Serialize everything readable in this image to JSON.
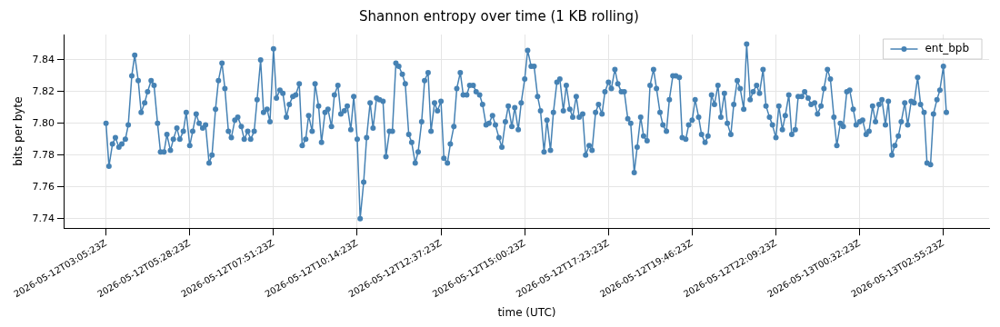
{
  "chart_data": {
    "type": "line",
    "title": "Shannon entropy over time (1 KB rolling)",
    "xlabel": "time (UTC)",
    "ylabel": "bits per byte",
    "x": [
      "2026-05-12T03:05",
      "2026-05-12T03:10",
      "2026-05-12T03:16",
      "2026-05-12T03:21",
      "2026-05-12T03:27",
      "2026-05-12T03:32",
      "2026-05-12T03:38",
      "2026-05-12T03:43",
      "2026-05-12T03:49",
      "2026-05-12T03:54",
      "2026-05-12T04:00",
      "2026-05-12T04:05",
      "2026-05-12T04:11",
      "2026-05-12T04:16",
      "2026-05-12T04:22",
      "2026-05-12T04:27",
      "2026-05-12T04:33",
      "2026-05-12T04:38",
      "2026-05-12T04:44",
      "2026-05-12T04:49",
      "2026-05-12T04:55",
      "2026-05-12T05:00",
      "2026-05-12T05:06",
      "2026-05-12T05:11",
      "2026-05-12T05:17",
      "2026-05-12T05:22",
      "2026-05-12T05:28",
      "2026-05-12T05:33",
      "2026-05-12T05:39",
      "2026-05-12T05:44",
      "2026-05-12T05:50",
      "2026-05-12T05:55",
      "2026-05-12T06:01",
      "2026-05-12T06:06",
      "2026-05-12T06:12",
      "2026-05-12T06:17",
      "2026-05-12T06:23",
      "2026-05-12T06:28",
      "2026-05-12T06:34",
      "2026-05-12T06:39",
      "2026-05-12T06:45",
      "2026-05-12T06:50",
      "2026-05-12T06:56",
      "2026-05-12T07:01",
      "2026-05-12T07:07",
      "2026-05-12T07:12",
      "2026-05-12T07:18",
      "2026-05-12T07:23",
      "2026-05-12T07:29",
      "2026-05-12T07:34",
      "2026-05-12T07:40",
      "2026-05-12T07:45",
      "2026-05-12T07:51",
      "2026-05-12T07:56",
      "2026-05-12T08:02",
      "2026-05-12T08:07",
      "2026-05-12T08:13",
      "2026-05-12T08:18",
      "2026-05-12T08:24",
      "2026-05-12T08:29",
      "2026-05-12T08:35",
      "2026-05-12T08:40",
      "2026-05-12T08:46",
      "2026-05-12T08:51",
      "2026-05-12T08:57",
      "2026-05-12T09:02",
      "2026-05-12T09:08",
      "2026-05-12T09:13",
      "2026-05-12T09:19",
      "2026-05-12T09:24",
      "2026-05-12T09:30",
      "2026-05-12T09:35",
      "2026-05-12T09:41",
      "2026-05-12T09:46",
      "2026-05-12T09:52",
      "2026-05-12T09:57",
      "2026-05-12T10:03",
      "2026-05-12T10:08",
      "2026-05-12T10:14",
      "2026-05-12T10:19",
      "2026-05-12T10:25",
      "2026-05-12T10:30",
      "2026-05-12T10:36",
      "2026-05-12T10:41",
      "2026-05-12T10:47",
      "2026-05-12T10:52",
      "2026-05-12T10:58",
      "2026-05-12T11:03",
      "2026-05-12T11:09",
      "2026-05-12T11:14",
      "2026-05-12T11:20",
      "2026-05-12T11:25",
      "2026-05-12T11:31",
      "2026-05-12T11:36",
      "2026-05-12T11:42",
      "2026-05-12T11:47",
      "2026-05-12T11:53",
      "2026-05-12T11:58",
      "2026-05-12T12:04",
      "2026-05-12T12:09",
      "2026-05-12T12:15",
      "2026-05-12T12:20",
      "2026-05-12T12:26",
      "2026-05-12T12:31",
      "2026-05-12T12:37",
      "2026-05-12T12:42",
      "2026-05-12T12:48",
      "2026-05-12T12:53",
      "2026-05-12T12:59",
      "2026-05-12T13:04",
      "2026-05-12T13:10",
      "2026-05-12T13:15",
      "2026-05-12T13:21",
      "2026-05-12T13:26",
      "2026-05-12T13:32",
      "2026-05-12T13:37",
      "2026-05-12T13:43",
      "2026-05-12T13:48",
      "2026-05-12T13:54",
      "2026-05-12T13:59",
      "2026-05-12T14:05",
      "2026-05-12T14:10",
      "2026-05-12T14:16",
      "2026-05-12T14:21",
      "2026-05-12T14:27",
      "2026-05-12T14:32",
      "2026-05-12T14:38",
      "2026-05-12T14:43",
      "2026-05-12T14:49",
      "2026-05-12T14:54",
      "2026-05-12T15:00",
      "2026-05-12T15:05",
      "2026-05-12T15:11",
      "2026-05-12T15:16",
      "2026-05-12T15:22",
      "2026-05-12T15:27",
      "2026-05-12T15:33",
      "2026-05-12T15:38",
      "2026-05-12T15:44",
      "2026-05-12T15:49",
      "2026-05-12T15:55",
      "2026-05-12T16:00",
      "2026-05-12T16:06",
      "2026-05-12T16:11",
      "2026-05-12T16:17",
      "2026-05-12T16:22",
      "2026-05-12T16:28",
      "2026-05-12T16:33",
      "2026-05-12T16:39",
      "2026-05-12T16:44",
      "2026-05-12T16:50",
      "2026-05-12T16:55",
      "2026-05-12T17:01",
      "2026-05-12T17:06",
      "2026-05-12T17:12",
      "2026-05-12T17:17",
      "2026-05-12T17:23",
      "2026-05-12T17:28",
      "2026-05-12T17:34",
      "2026-05-12T17:39",
      "2026-05-12T17:45",
      "2026-05-12T17:50",
      "2026-05-12T17:56",
      "2026-05-12T18:01",
      "2026-05-12T18:07",
      "2026-05-12T18:12",
      "2026-05-12T18:18",
      "2026-05-12T18:23",
      "2026-05-12T18:29",
      "2026-05-12T18:34",
      "2026-05-12T18:40",
      "2026-05-12T18:45",
      "2026-05-12T18:51",
      "2026-05-12T18:56",
      "2026-05-12T19:02",
      "2026-05-12T19:07",
      "2026-05-12T19:13",
      "2026-05-12T19:18",
      "2026-05-12T19:24",
      "2026-05-12T19:29",
      "2026-05-12T19:35",
      "2026-05-12T19:40",
      "2026-05-12T19:46",
      "2026-05-12T19:51",
      "2026-05-12T19:57",
      "2026-05-12T20:02",
      "2026-05-12T20:08",
      "2026-05-12T20:13",
      "2026-05-12T20:19",
      "2026-05-12T20:24",
      "2026-05-12T20:30",
      "2026-05-12T20:35",
      "2026-05-12T20:41",
      "2026-05-12T20:46",
      "2026-05-12T20:52",
      "2026-05-12T20:57",
      "2026-05-12T21:03",
      "2026-05-12T21:08",
      "2026-05-12T21:14",
      "2026-05-12T21:19",
      "2026-05-12T21:25",
      "2026-05-12T21:30",
      "2026-05-12T21:36",
      "2026-05-12T21:41",
      "2026-05-12T21:47",
      "2026-05-12T21:52",
      "2026-05-12T21:58",
      "2026-05-12T22:03",
      "2026-05-12T22:09",
      "2026-05-12T22:14",
      "2026-05-12T22:20",
      "2026-05-12T22:25",
      "2026-05-12T22:31",
      "2026-05-12T22:36",
      "2026-05-12T22:42",
      "2026-05-12T22:47",
      "2026-05-12T22:53",
      "2026-05-12T22:58",
      "2026-05-12T23:04",
      "2026-05-12T23:09",
      "2026-05-12T23:15",
      "2026-05-12T23:20",
      "2026-05-12T23:26",
      "2026-05-12T23:31",
      "2026-05-12T23:37",
      "2026-05-12T23:42",
      "2026-05-12T23:48",
      "2026-05-12T23:53",
      "2026-05-12T23:59",
      "2026-05-13T00:04",
      "2026-05-13T00:10",
      "2026-05-13T00:15",
      "2026-05-13T00:21",
      "2026-05-13T00:26",
      "2026-05-13T00:32",
      "2026-05-13T00:37",
      "2026-05-13T00:43",
      "2026-05-13T00:48",
      "2026-05-13T00:54",
      "2026-05-13T00:59",
      "2026-05-13T01:05",
      "2026-05-13T01:10",
      "2026-05-13T01:16",
      "2026-05-13T01:21",
      "2026-05-13T01:27",
      "2026-05-13T01:32",
      "2026-05-13T01:38",
      "2026-05-13T01:43",
      "2026-05-13T01:49",
      "2026-05-13T01:54",
      "2026-05-13T02:00",
      "2026-05-13T02:05",
      "2026-05-13T02:11",
      "2026-05-13T02:16",
      "2026-05-13T02:22",
      "2026-05-13T02:27",
      "2026-05-13T02:33",
      "2026-05-13T02:38",
      "2026-05-13T02:44",
      "2026-05-13T02:49",
      "2026-05-13T02:55",
      "2026-05-13T03:00"
    ],
    "series": [
      {
        "name": "ent_bpb",
        "color": "#4682b4",
        "values": [
          7.8,
          7.773,
          7.787,
          7.791,
          7.785,
          7.787,
          7.79,
          7.799,
          7.83,
          7.843,
          7.827,
          7.807,
          7.813,
          7.82,
          7.827,
          7.824,
          7.8,
          7.782,
          7.782,
          7.793,
          7.783,
          7.79,
          7.797,
          7.79,
          7.795,
          7.807,
          7.786,
          7.795,
          7.806,
          7.8,
          7.797,
          7.799,
          7.775,
          7.78,
          7.809,
          7.827,
          7.838,
          7.822,
          7.795,
          7.791,
          7.802,
          7.804,
          7.798,
          7.79,
          7.795,
          7.79,
          7.795,
          7.815,
          7.84,
          7.807,
          7.809,
          7.801,
          7.847,
          7.816,
          7.821,
          7.819,
          7.804,
          7.812,
          7.817,
          7.818,
          7.825,
          7.786,
          7.79,
          7.805,
          7.795,
          7.825,
          7.811,
          7.788,
          7.807,
          7.809,
          7.798,
          7.818,
          7.824,
          7.806,
          7.808,
          7.811,
          7.796,
          7.817,
          7.79,
          7.74,
          7.763,
          7.791,
          7.813,
          7.797,
          7.816,
          7.815,
          7.814,
          7.779,
          7.795,
          7.795,
          7.838,
          7.836,
          7.831,
          7.825,
          7.793,
          7.788,
          7.775,
          7.782,
          7.801,
          7.827,
          7.832,
          7.795,
          7.813,
          7.808,
          7.814,
          7.778,
          7.775,
          7.787,
          7.798,
          7.822,
          7.832,
          7.818,
          7.818,
          7.824,
          7.824,
          7.82,
          7.818,
          7.812,
          7.799,
          7.8,
          7.805,
          7.799,
          7.791,
          7.785,
          7.801,
          7.811,
          7.798,
          7.81,
          7.796,
          7.813,
          7.828,
          7.846,
          7.836,
          7.836,
          7.817,
          7.808,
          7.782,
          7.802,
          7.783,
          7.807,
          7.826,
          7.828,
          7.808,
          7.824,
          7.809,
          7.804,
          7.817,
          7.804,
          7.806,
          7.78,
          7.786,
          7.783,
          7.807,
          7.812,
          7.806,
          7.82,
          7.826,
          7.822,
          7.834,
          7.825,
          7.82,
          7.82,
          7.803,
          7.8,
          7.769,
          7.785,
          7.804,
          7.792,
          7.789,
          7.824,
          7.834,
          7.822,
          7.807,
          7.799,
          7.795,
          7.815,
          7.83,
          7.83,
          7.829,
          7.791,
          7.79,
          7.799,
          7.802,
          7.815,
          7.804,
          7.793,
          7.788,
          7.792,
          7.818,
          7.812,
          7.824,
          7.804,
          7.819,
          7.8,
          7.793,
          7.812,
          7.827,
          7.822,
          7.809,
          7.85,
          7.815,
          7.82,
          7.824,
          7.819,
          7.834,
          7.811,
          7.804,
          7.799,
          7.791,
          7.811,
          7.796,
          7.805,
          7.818,
          7.793,
          7.796,
          7.817,
          7.817,
          7.82,
          7.816,
          7.812,
          7.813,
          7.806,
          7.811,
          7.822,
          7.834,
          7.828,
          7.804,
          7.786,
          7.8,
          7.798,
          7.82,
          7.821,
          7.809,
          7.799,
          7.801,
          7.802,
          7.793,
          7.795,
          7.811,
          7.801,
          7.812,
          7.815,
          7.799,
          7.814,
          7.78,
          7.786,
          7.792,
          7.801,
          7.813,
          7.799,
          7.814,
          7.813,
          7.829,
          7.812,
          7.807,
          7.775,
          7.774,
          7.806,
          7.815,
          7.821,
          7.836,
          7.807
        ]
      }
    ],
    "xlim": [
      "2026-05-12T01:54",
      "2026-05-13T04:13"
    ],
    "xticks": [
      {
        "value": "2026-05-12T03:05",
        "label": "2026-05-12T03:05:23Z"
      },
      {
        "value": "2026-05-12T05:28",
        "label": "2026-05-12T05:28:23Z"
      },
      {
        "value": "2026-05-12T07:51",
        "label": "2026-05-12T07:51:23Z"
      },
      {
        "value": "2026-05-12T10:14",
        "label": "2026-05-12T10:14:23Z"
      },
      {
        "value": "2026-05-12T12:37",
        "label": "2026-05-12T12:37:23Z"
      },
      {
        "value": "2026-05-12T15:00",
        "label": "2026-05-12T15:00:23Z"
      },
      {
        "value": "2026-05-12T17:23",
        "label": "2026-05-12T17:23:23Z"
      },
      {
        "value": "2026-05-12T19:46",
        "label": "2026-05-12T19:46:23Z"
      },
      {
        "value": "2026-05-12T22:09",
        "label": "2026-05-12T22:09:23Z"
      },
      {
        "value": "2026-05-13T00:32",
        "label": "2026-05-13T00:32:23Z"
      },
      {
        "value": "2026-05-13T02:55",
        "label": "2026-05-13T02:55:23Z"
      }
    ],
    "ylim": [
      7.734,
      7.856
    ],
    "yticks": [
      7.74,
      7.76,
      7.78,
      {
        "value": 7.8,
        "label": "7.80"
      },
      7.82,
      7.84
    ],
    "grid": true,
    "legend": "top right",
    "marker": "circle",
    "line_style": "solid"
  }
}
